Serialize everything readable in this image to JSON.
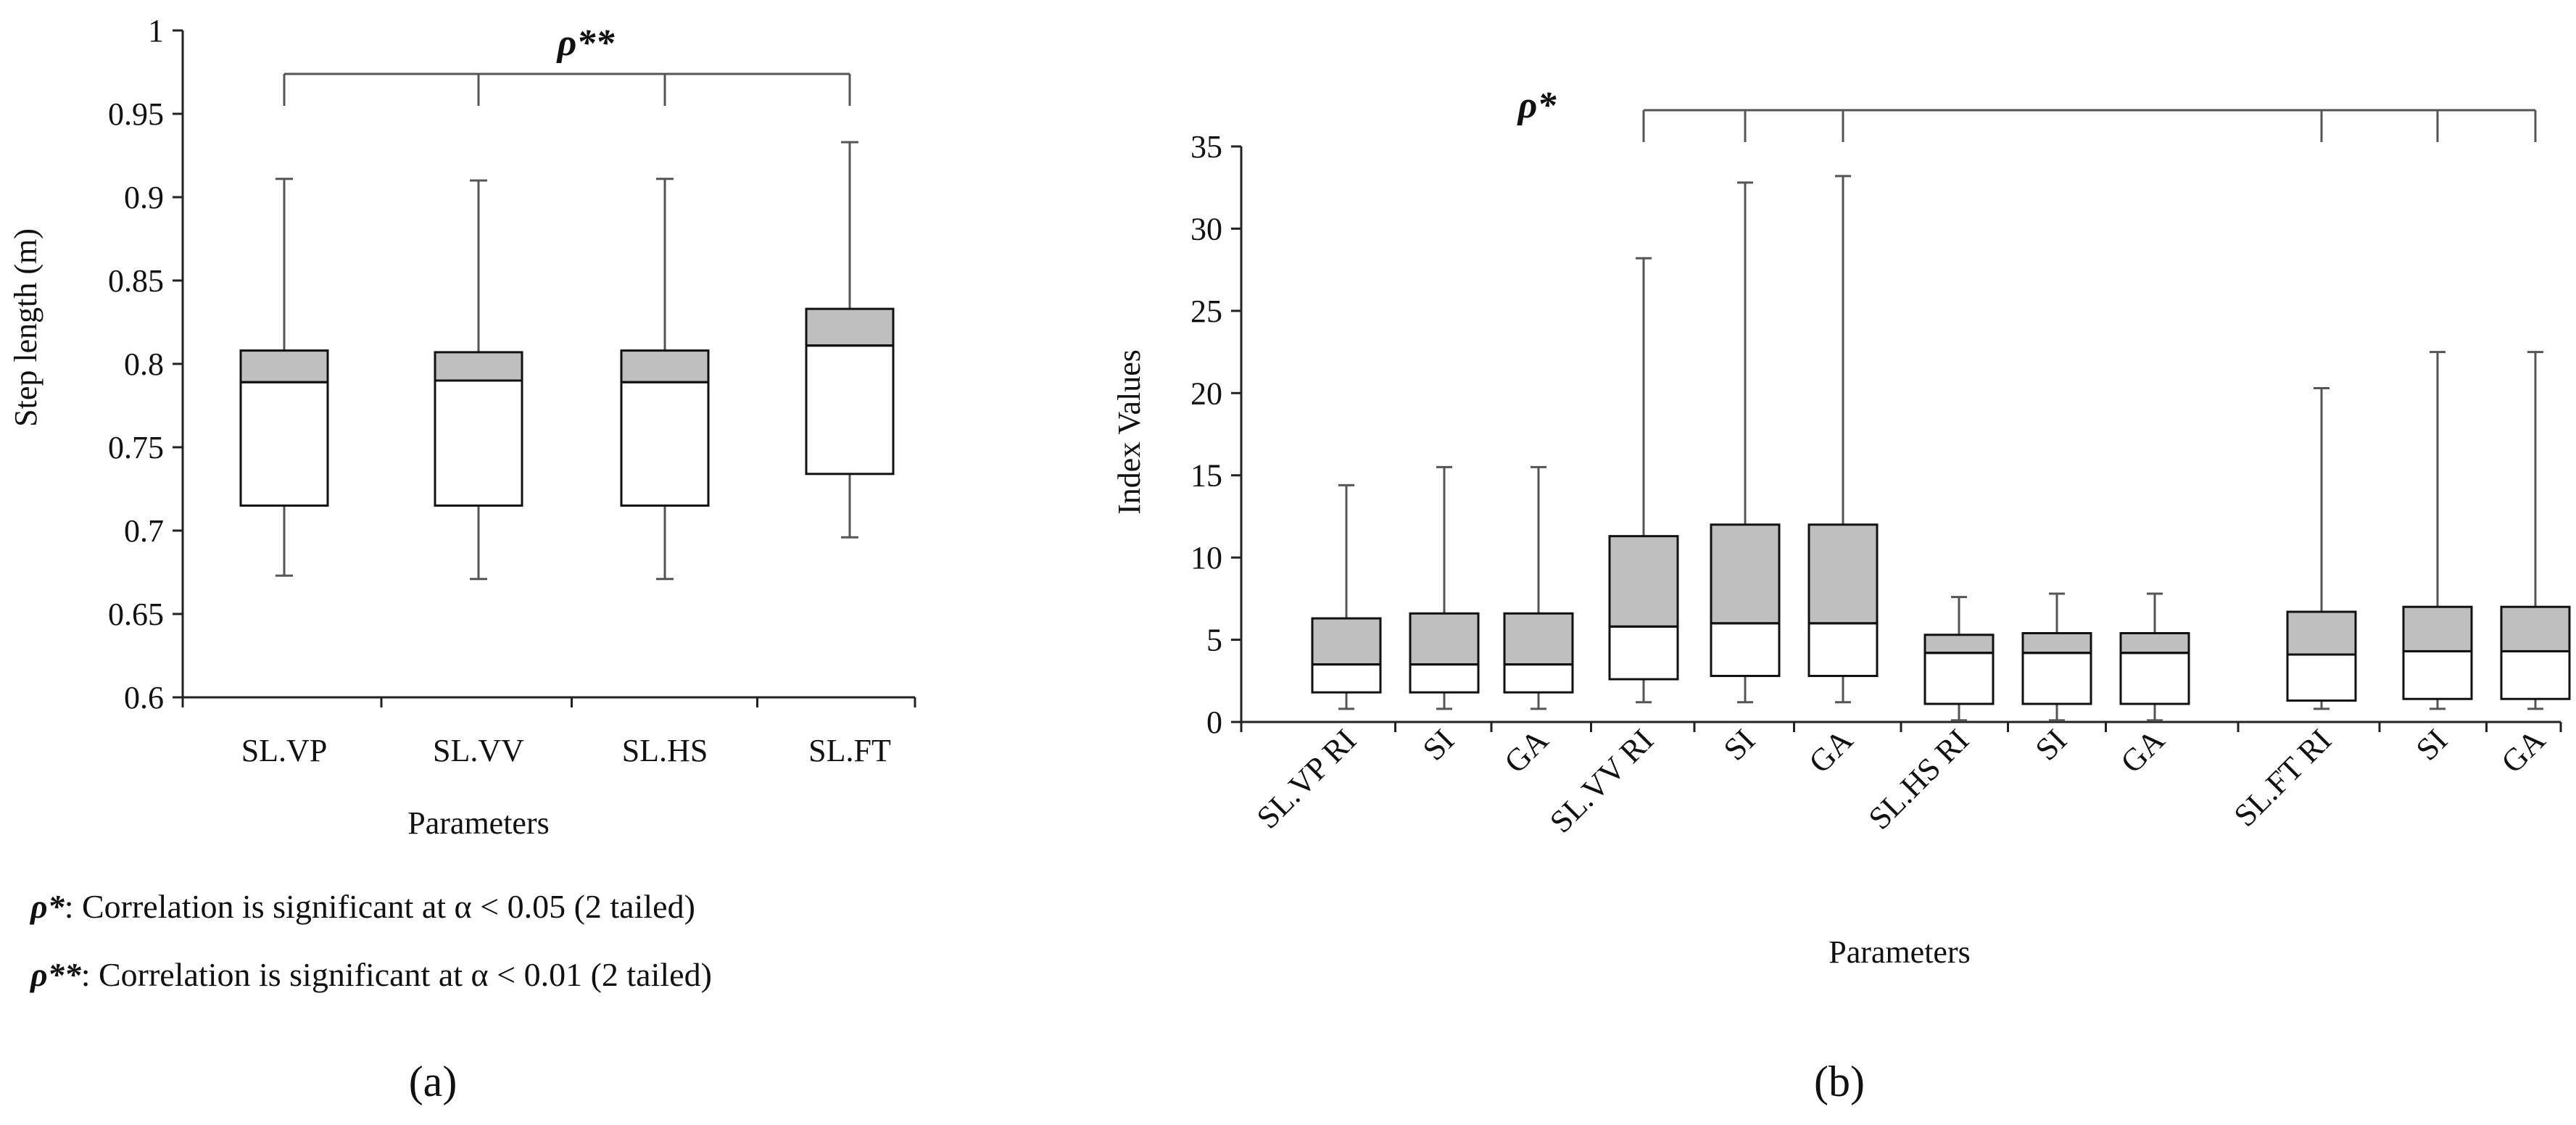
{
  "chart_data": [
    {
      "type": "box",
      "panel_label": "(a)",
      "ylabel": "Step length (m)",
      "xlabel": "Parameters",
      "ylim": [
        0.6,
        1.0
      ],
      "yticks": [
        "0.6",
        "0.65",
        "0.7",
        "0.75",
        "0.8",
        "0.85",
        "0.9",
        "0.95",
        "1"
      ],
      "categories": [
        "SL.VP",
        "SL.VV",
        "SL.HS",
        "SL.FT"
      ],
      "boxes": [
        {
          "min": 0.673,
          "q1": 0.715,
          "median": 0.789,
          "q3": 0.808,
          "max": 0.911
        },
        {
          "min": 0.671,
          "q1": 0.715,
          "median": 0.79,
          "q3": 0.807,
          "max": 0.91
        },
        {
          "min": 0.671,
          "q1": 0.715,
          "median": 0.789,
          "q3": 0.808,
          "max": 0.911
        },
        {
          "min": 0.696,
          "q1": 0.734,
          "median": 0.811,
          "q3": 0.833,
          "max": 0.933
        }
      ],
      "significance": {
        "label": "ρ**",
        "groups": [
          0,
          1,
          2,
          3
        ]
      }
    },
    {
      "type": "box",
      "panel_label": "(b)",
      "ylabel": "Index Values",
      "xlabel": "Parameters",
      "ylim": [
        0,
        35
      ],
      "yticks": [
        "0",
        "5",
        "10",
        "15",
        "20",
        "25",
        "30",
        "35"
      ],
      "categories": [
        "SL.VP RI",
        "SI",
        "GA",
        "SL.VV RI",
        "SI",
        "GA",
        "SL.HS RI",
        "SI",
        "GA",
        "SL.FT RI",
        "SI",
        "GA"
      ],
      "boxes": [
        {
          "min": 0.8,
          "q1": 1.8,
          "median": 3.5,
          "q3": 6.3,
          "max": 14.4
        },
        {
          "min": 0.8,
          "q1": 1.8,
          "median": 3.5,
          "q3": 6.6,
          "max": 15.5
        },
        {
          "min": 0.8,
          "q1": 1.8,
          "median": 3.5,
          "q3": 6.6,
          "max": 15.5
        },
        {
          "min": 1.2,
          "q1": 2.6,
          "median": 5.8,
          "q3": 11.3,
          "max": 28.2
        },
        {
          "min": 1.2,
          "q1": 2.8,
          "median": 6.0,
          "q3": 12.0,
          "max": 32.8
        },
        {
          "min": 1.2,
          "q1": 2.8,
          "median": 6.0,
          "q3": 12.0,
          "max": 33.2
        },
        {
          "min": 0.1,
          "q1": 1.1,
          "median": 4.2,
          "q3": 5.3,
          "max": 7.6
        },
        {
          "min": 0.1,
          "q1": 1.1,
          "median": 4.2,
          "q3": 5.4,
          "max": 7.8
        },
        {
          "min": 0.1,
          "q1": 1.1,
          "median": 4.2,
          "q3": 5.4,
          "max": 7.8
        },
        {
          "min": 0.8,
          "q1": 1.3,
          "median": 4.1,
          "q3": 6.7,
          "max": 20.3
        },
        {
          "min": 0.8,
          "q1": 1.4,
          "median": 4.3,
          "q3": 7.0,
          "max": 22.5
        },
        {
          "min": 0.8,
          "q1": 1.4,
          "median": 4.3,
          "q3": 7.0,
          "max": 22.5
        }
      ],
      "significance": {
        "label": "ρ*",
        "groups": [
          3,
          4,
          5,
          9,
          10,
          11
        ]
      }
    }
  ],
  "colors": {
    "q3_fill": "#bfbfbf",
    "q2_fill": "#ffffff",
    "line": "#111111",
    "whisker": "#555555"
  },
  "legend": {
    "line1_symbol": "ρ*",
    "line1_text": ": Correlation is significant at α < 0.05 (2 tailed)",
    "line2_symbol": "ρ**",
    "line2_text": ": Correlation is significant at α < 0.01 (2 tailed)"
  }
}
